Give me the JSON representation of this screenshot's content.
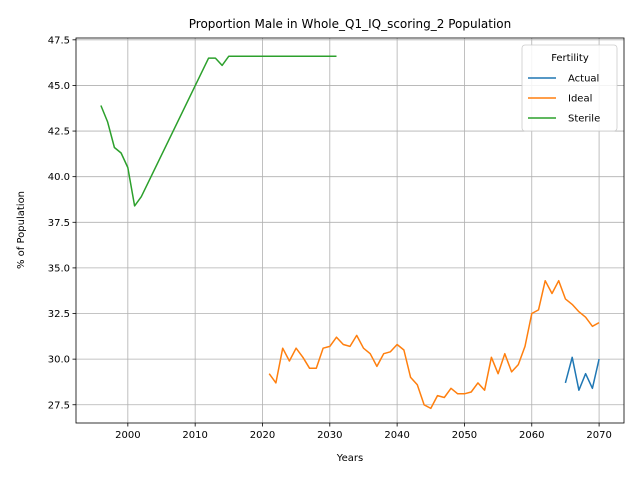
{
  "chart_data": {
    "type": "line",
    "title": "Proportion Male in Whole_Q1_IQ_scoring_2 Population",
    "xlabel": "Years",
    "ylabel": "% of Population",
    "xlim": [
      1992.3,
      2073.7
    ],
    "ylim": [
      26.5,
      47.6
    ],
    "xticks": [
      2000,
      2010,
      2020,
      2030,
      2040,
      2050,
      2060,
      2070
    ],
    "yticks": [
      27.5,
      30.0,
      32.5,
      35.0,
      37.5,
      40.0,
      42.5,
      45.0,
      47.5
    ],
    "grid": true,
    "legend": {
      "title": "Fertility",
      "placement": "top-right"
    },
    "series": [
      {
        "name": "Actual",
        "color": "#1f77b4",
        "x": [
          2065,
          2066,
          2067,
          2068,
          2069,
          2070
        ],
        "y": [
          28.7,
          30.1,
          28.3,
          29.2,
          28.4,
          30.0
        ]
      },
      {
        "name": "Ideal",
        "color": "#ff7f0e",
        "x": [
          2021,
          2022,
          2023,
          2024,
          2025,
          2026,
          2027,
          2028,
          2029,
          2030,
          2031,
          2032,
          2033,
          2034,
          2035,
          2036,
          2037,
          2038,
          2039,
          2040,
          2041,
          2042,
          2043,
          2044,
          2045,
          2046,
          2047,
          2048,
          2049,
          2050,
          2051,
          2052,
          2053,
          2054,
          2055,
          2056,
          2057,
          2058,
          2059,
          2060,
          2061,
          2062,
          2063,
          2064,
          2065,
          2066,
          2067,
          2068,
          2069,
          2070
        ],
        "y": [
          29.2,
          28.7,
          30.6,
          29.9,
          30.6,
          30.1,
          29.5,
          29.5,
          30.6,
          30.7,
          31.2,
          30.8,
          30.7,
          31.3,
          30.6,
          30.3,
          29.6,
          30.3,
          30.4,
          30.8,
          30.5,
          29.0,
          28.6,
          27.5,
          27.3,
          28.0,
          27.9,
          28.4,
          28.1,
          28.1,
          28.2,
          28.7,
          28.3,
          30.1,
          29.2,
          30.3,
          29.3,
          29.7,
          30.7,
          32.5,
          32.7,
          34.3,
          33.6,
          34.3,
          33.3,
          33.0,
          32.6,
          32.3,
          31.8,
          32.0
        ]
      },
      {
        "name": "Sterile",
        "color": "#2ca02c",
        "x": [
          1996,
          1997,
          1998,
          1999,
          2000,
          2001,
          2002,
          2012,
          2013,
          2014,
          2015,
          2031
        ],
        "y": [
          43.9,
          43.0,
          41.6,
          41.3,
          40.5,
          38.4,
          38.9,
          46.5,
          46.5,
          46.1,
          46.6,
          46.6
        ]
      }
    ]
  }
}
